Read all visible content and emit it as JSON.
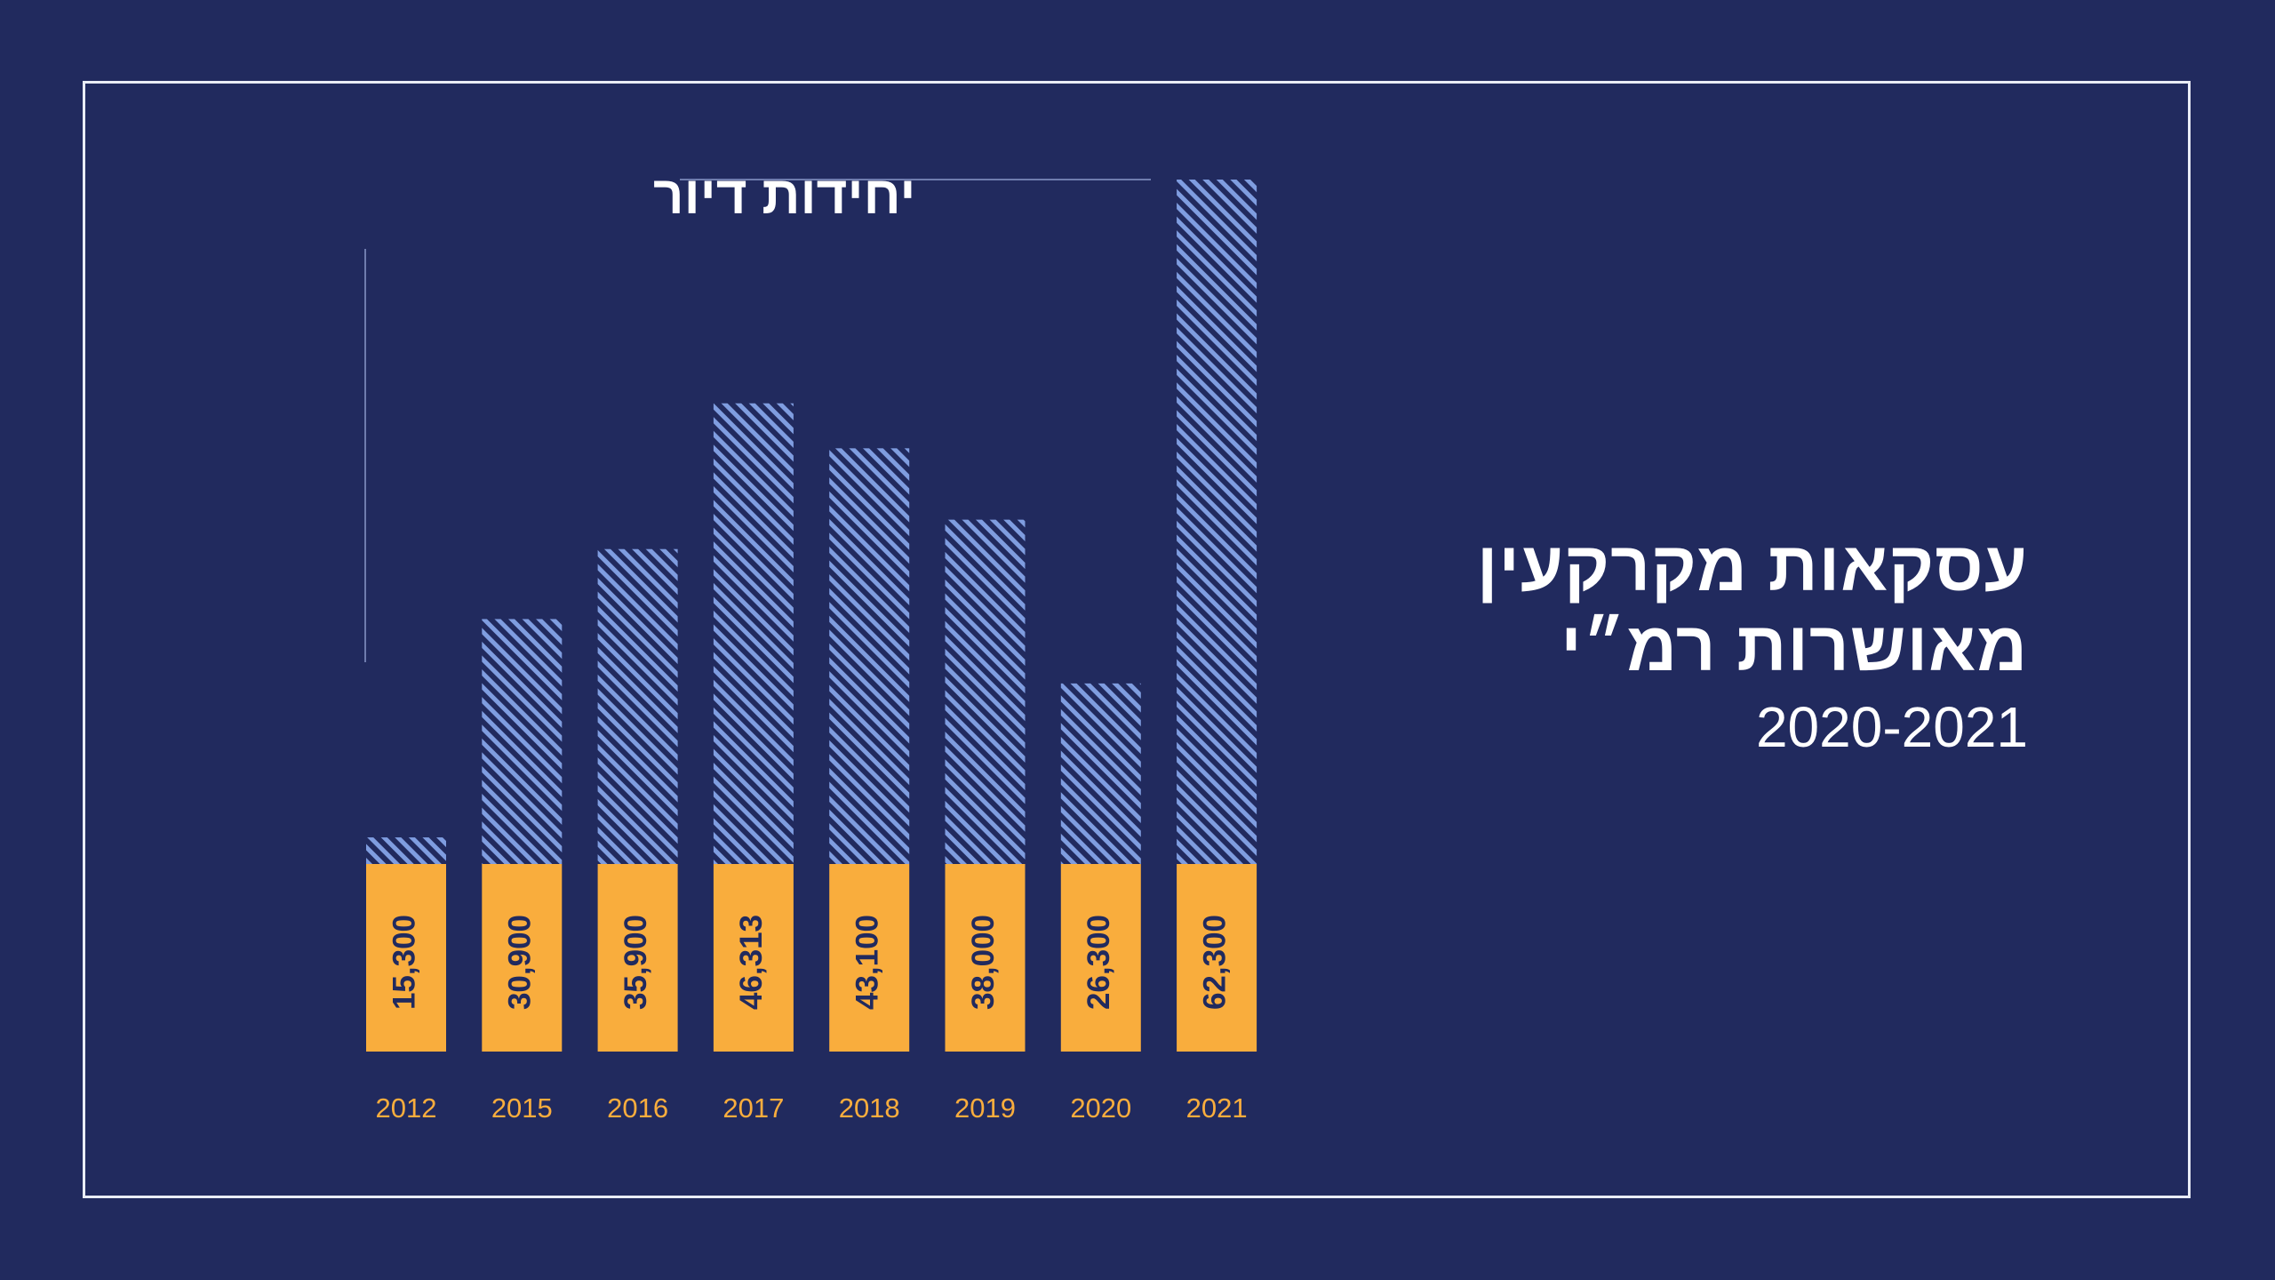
{
  "chart_data": {
    "type": "bar",
    "title": "עסקאות מקרקעין מאושרות רמ״י",
    "unit_label": "יחידות דיור",
    "categories": [
      "2012",
      "2015",
      "2016",
      "2017",
      "2018",
      "2019",
      "2020",
      "2021"
    ],
    "values": [
      15300,
      30900,
      35900,
      46313,
      43100,
      38000,
      26300,
      62300
    ],
    "value_labels": [
      "15,300",
      "30,900",
      "35,900",
      "46,313",
      "43,100",
      "38,000",
      "26,300",
      "62,300"
    ],
    "ylim": [
      0,
      62300
    ],
    "grid": false,
    "legend": "none"
  },
  "heading": {
    "line1": "עסקאות מקרקעין",
    "line2": "מאושרות רמ״י",
    "years": "2020-2021"
  },
  "colors": {
    "background": "#212a5e",
    "bar_hatch": "#7f9de0",
    "bar_base": "#f9ad3d",
    "value_text": "#212a5e",
    "category_text": "#f9ad3d",
    "frame": "#e9ecf5"
  }
}
